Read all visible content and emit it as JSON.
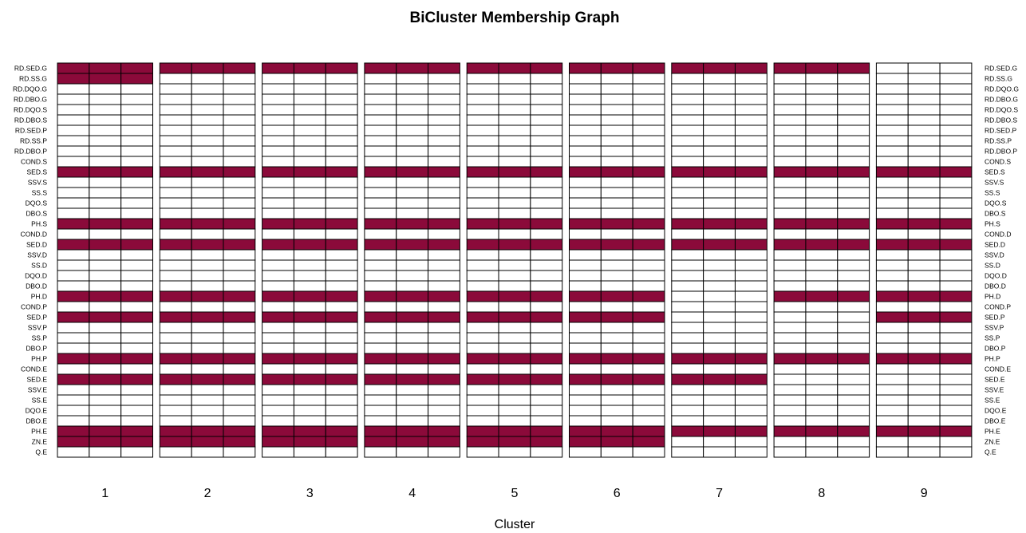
{
  "chart_data": {
    "type": "heatmap",
    "title": "BiCluster Membership Graph",
    "xlabel": "Cluster",
    "ylabel": "",
    "clusters": [
      "1",
      "2",
      "3",
      "4",
      "5",
      "6",
      "7",
      "8",
      "9"
    ],
    "columns_per_cluster": 3,
    "rows": [
      "RD.SED.G",
      "RD.SS.G",
      "RD.DQO.G",
      "RD.DBO.G",
      "RD.DQO.S",
      "RD.DBO.S",
      "RD.SED.P",
      "RD.SS.P",
      "RD.DBO.P",
      "COND.S",
      "SED.S",
      "SSV.S",
      "SS.S",
      "DQO.S",
      "DBO.S",
      "PH.S",
      "COND.D",
      "SED.D",
      "SSV.D",
      "SS.D",
      "DQO.D",
      "DBO.D",
      "PH.D",
      "COND.P",
      "SED.P",
      "SSV.P",
      "SS.P",
      "DBO.P",
      "PH.P",
      "COND.E",
      "SED.E",
      "SSV.E",
      "SS.E",
      "DQO.E",
      "DBO.E",
      "PH.E",
      "ZN.E",
      "Q.E"
    ],
    "membership": {
      "1": [
        "RD.SED.G",
        "RD.SS.G",
        "SED.S",
        "PH.S",
        "SED.D",
        "PH.D",
        "SED.P",
        "PH.P",
        "SED.E",
        "PH.E",
        "ZN.E"
      ],
      "2": [
        "RD.SED.G",
        "SED.S",
        "PH.S",
        "SED.D",
        "PH.D",
        "SED.P",
        "PH.P",
        "SED.E",
        "PH.E",
        "ZN.E"
      ],
      "3": [
        "RD.SED.G",
        "SED.S",
        "PH.S",
        "SED.D",
        "PH.D",
        "SED.P",
        "PH.P",
        "SED.E",
        "PH.E",
        "ZN.E"
      ],
      "4": [
        "RD.SED.G",
        "SED.S",
        "PH.S",
        "SED.D",
        "PH.D",
        "SED.P",
        "PH.P",
        "SED.E",
        "PH.E",
        "ZN.E"
      ],
      "5": [
        "RD.SED.G",
        "SED.S",
        "PH.S",
        "SED.D",
        "PH.D",
        "SED.P",
        "PH.P",
        "SED.E",
        "PH.E",
        "ZN.E"
      ],
      "6": [
        "RD.SED.G",
        "SED.S",
        "PH.S",
        "SED.D",
        "PH.D",
        "SED.P",
        "PH.P",
        "SED.E",
        "PH.E",
        "ZN.E"
      ],
      "7": [
        "RD.SED.G",
        "SED.S",
        "PH.S",
        "SED.D",
        "PH.P",
        "SED.E",
        "PH.E"
      ],
      "8": [
        "RD.SED.G",
        "SED.S",
        "PH.S",
        "SED.D",
        "PH.D",
        "PH.P",
        "PH.E"
      ],
      "9": [
        "SED.S",
        "PH.S",
        "SED.D",
        "PH.D",
        "SED.P",
        "PH.P",
        "PH.E"
      ]
    },
    "colors": {
      "member": "#8b0a3a",
      "empty": "#ffffff",
      "border": "#000000"
    }
  }
}
